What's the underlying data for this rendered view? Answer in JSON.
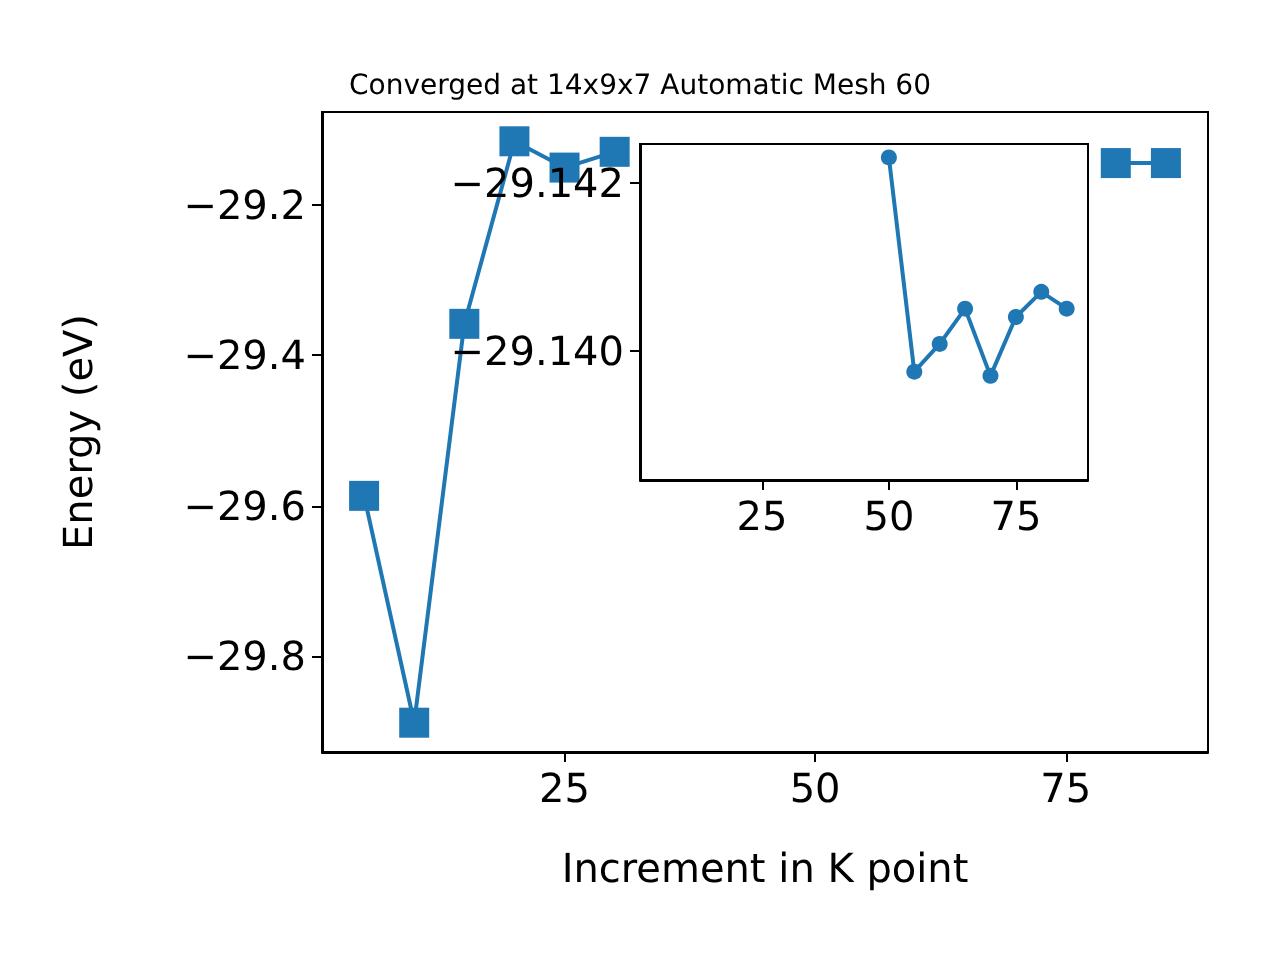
{
  "chart_data": [
    {
      "type": "line",
      "title": "Converged at 14x9x7 Automatic Mesh 60",
      "xlabel": "Increment in K point",
      "ylabel": "Energy (eV)",
      "x": [
        5,
        10,
        15,
        20,
        25,
        30,
        35,
        40,
        45,
        50,
        55,
        60,
        65,
        70,
        75,
        80,
        85
      ],
      "series": [
        {
          "color": "#1f77b4",
          "values": [
            -29.587,
            -29.889,
            -29.358,
            -29.115,
            -29.15,
            -29.129,
            null,
            null,
            null,
            null,
            null,
            null,
            null,
            null,
            null,
            -29.144,
            -29.144
          ]
        }
      ],
      "xlim": [
        0.8,
        89.2
      ],
      "xticks": [
        25,
        50,
        75
      ],
      "ylim": [
        -29.928,
        -29.076
      ],
      "yticks": [
        -29.8,
        -29.6,
        -29.4,
        -29.2
      ],
      "grid": false,
      "marker": "square",
      "line_style": "solid"
    },
    {
      "type": "line",
      "x": [
        50,
        55,
        60,
        65,
        70,
        75,
        80,
        85
      ],
      "series": [
        {
          "color": "#1f77b4",
          "values": [
            -29.1423,
            -29.13975,
            -29.14008,
            -29.1405,
            -29.1397,
            -29.1404,
            -29.1407,
            -29.1405
          ]
        }
      ],
      "xlim": [
        1,
        89.2
      ],
      "xticks": [
        25,
        50,
        75
      ],
      "ylim": [
        -29.13846,
        -29.14246
      ],
      "yticks": [
        {
          "value": -29.142,
          "label": "−29.142"
        },
        {
          "value": -29.14,
          "label": "−29.140"
        }
      ],
      "grid": false,
      "marker": "circle",
      "line_style": "solid"
    }
  ]
}
